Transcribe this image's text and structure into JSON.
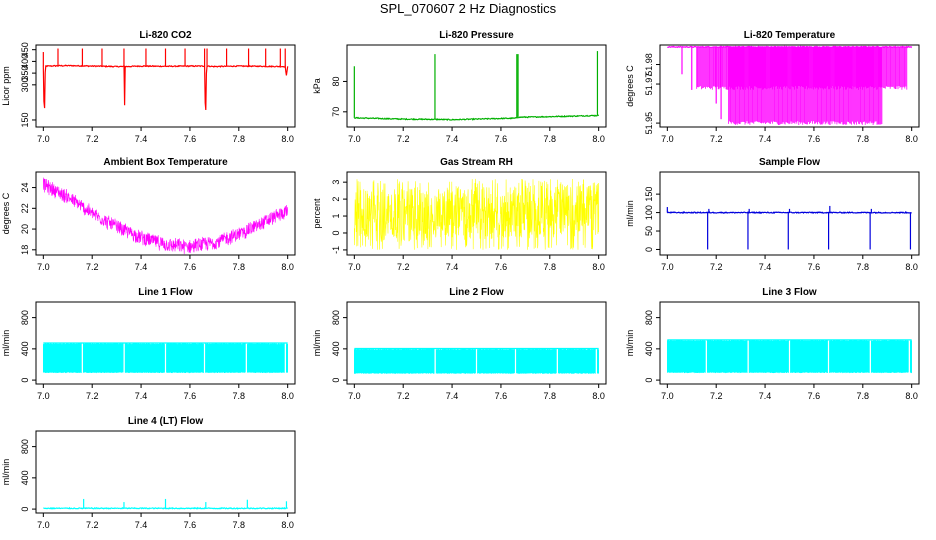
{
  "title": "SPL_070607  2 Hz Diagnostics",
  "chart_data": [
    {
      "id": "co2",
      "type": "line",
      "title": "Li-820 CO2",
      "ylabel": "Licor ppm",
      "color": "#ff0000",
      "xlim": [
        6.97,
        8.03
      ],
      "ylim": [
        120,
        470
      ],
      "xticks": [
        7.0,
        7.2,
        7.4,
        7.6,
        7.8,
        8.0
      ],
      "xtick_labels": [
        "7.0",
        "7.2",
        "7.4",
        "7.6",
        "7.8",
        "8.0"
      ],
      "yticks": [
        150,
        300,
        350,
        400,
        450
      ],
      "ytick_labels": [
        "150",
        "300",
        "350",
        "400",
        "450"
      ],
      "series": [
        {
          "x": [
            7.0,
            7.004,
            7.008,
            7.1,
            7.2,
            7.3,
            7.33,
            7.332,
            7.334,
            7.4,
            7.5,
            7.6,
            7.66,
            7.664,
            7.668,
            7.7,
            7.8,
            7.9,
            7.99,
            7.995,
            8.0
          ],
          "y": [
            380,
            140,
            380,
            382,
            380,
            378,
            378,
            160,
            378,
            380,
            379,
            380,
            380,
            130,
            380,
            378,
            380,
            379,
            378,
            340,
            378
          ],
          "spikes": [
            {
              "x": 7.0,
              "y": 440
            },
            {
              "x": 7.06,
              "y": 455
            },
            {
              "x": 7.16,
              "y": 455
            },
            {
              "x": 7.24,
              "y": 455
            },
            {
              "x": 7.33,
              "y": 455
            },
            {
              "x": 7.42,
              "y": 455
            },
            {
              "x": 7.5,
              "y": 455
            },
            {
              "x": 7.58,
              "y": 455
            },
            {
              "x": 7.66,
              "y": 455
            },
            {
              "x": 7.67,
              "y": 455
            },
            {
              "x": 7.75,
              "y": 455
            },
            {
              "x": 7.84,
              "y": 455
            },
            {
              "x": 7.91,
              "y": 455
            },
            {
              "x": 7.97,
              "y": 455
            },
            {
              "x": 7.99,
              "y": 455
            }
          ]
        }
      ]
    },
    {
      "id": "pressure",
      "type": "line",
      "title": "Li-820 Pressure",
      "ylabel": "kPa",
      "color": "#00b000",
      "xlim": [
        6.97,
        8.03
      ],
      "ylim": [
        65,
        92
      ],
      "xticks": [
        7.0,
        7.2,
        7.4,
        7.6,
        7.8,
        8.0
      ],
      "xtick_labels": [
        "7.0",
        "7.2",
        "7.4",
        "7.6",
        "7.8",
        "8.0"
      ],
      "yticks": [
        70,
        80
      ],
      "ytick_labels": [
        "70",
        "80"
      ],
      "series": [
        {
          "x": [
            7.0,
            7.2,
            7.33,
            7.34,
            7.4,
            7.5,
            7.6,
            7.66,
            7.67,
            7.8,
            7.9,
            8.0
          ],
          "y": [
            68,
            67.6,
            67.5,
            67.5,
            67.4,
            67.6,
            67.8,
            67.9,
            68.2,
            68.4,
            68.6,
            68.8
          ],
          "spikes": [
            {
              "x": 7.0,
              "y": 85
            },
            {
              "x": 7.33,
              "y": 89
            },
            {
              "x": 7.665,
              "y": 89
            },
            {
              "x": 7.67,
              "y": 89
            },
            {
              "x": 7.995,
              "y": 90
            }
          ]
        }
      ]
    },
    {
      "id": "licor_temp",
      "type": "line",
      "title": "Li-820 Temperature",
      "ylabel": "degrees C",
      "color": "#ff00ff",
      "xlim": [
        6.97,
        8.03
      ],
      "ylim": [
        51.948,
        51.99
      ],
      "xticks": [
        7.0,
        7.2,
        7.4,
        7.6,
        7.8,
        8.0
      ],
      "xtick_labels": [
        "7.0",
        "7.2",
        "7.4",
        "7.6",
        "7.8",
        "8.0"
      ],
      "yticks": [
        51.95,
        51.97,
        51.98
      ],
      "ytick_labels": [
        "51.95",
        "51.97",
        "51.98"
      ],
      "series": [
        {
          "x": [
            7.0,
            8.0
          ],
          "y": [
            51.989,
            51.989
          ],
          "spikes": [
            {
              "x": 7.06,
              "y": 51.975
            },
            {
              "x": 7.1,
              "y": 51.967
            },
            {
              "x": 7.2,
              "y": 51.96
            },
            {
              "x": 7.22,
              "y": 51.952
            }
          ],
          "drop_band": {
            "x_from": 7.25,
            "x_to": 7.88,
            "y_bottom": 51.949
          },
          "drop_band_upper": {
            "x_from": 7.12,
            "x_to": 7.98,
            "y_bottom": 51.967
          }
        }
      ]
    },
    {
      "id": "box_temp",
      "type": "line",
      "title": "Ambient Box Temperature",
      "ylabel": "degrees C",
      "color": "#ff00ff",
      "xlim": [
        6.97,
        8.03
      ],
      "ylim": [
        17.5,
        25.5
      ],
      "xticks": [
        7.0,
        7.2,
        7.4,
        7.6,
        7.8,
        8.0
      ],
      "xtick_labels": [
        "7.0",
        "7.2",
        "7.4",
        "7.6",
        "7.8",
        "8.0"
      ],
      "yticks": [
        18,
        20,
        22,
        24
      ],
      "ytick_labels": [
        "18",
        "20",
        "22",
        "24"
      ],
      "series": [
        {
          "x": [
            7.0,
            7.1,
            7.2,
            7.3,
            7.4,
            7.5,
            7.6,
            7.7,
            7.8,
            7.9,
            8.0
          ],
          "y": [
            24.3,
            23.1,
            21.5,
            20.2,
            19.2,
            18.5,
            18.3,
            18.7,
            19.5,
            20.6,
            21.8
          ],
          "noise": 0.8
        }
      ]
    },
    {
      "id": "rh",
      "type": "line",
      "title": "Gas Stream RH",
      "ylabel": "percent",
      "color": "#ffff00",
      "xlim": [
        6.97,
        8.03
      ],
      "ylim": [
        -1.3,
        3.6
      ],
      "xticks": [
        7.0,
        7.2,
        7.4,
        7.6,
        7.8,
        8.0
      ],
      "xtick_labels": [
        "7.0",
        "7.2",
        "7.4",
        "7.6",
        "7.8",
        "8.0"
      ],
      "yticks": [
        -1,
        0,
        1,
        2,
        3
      ],
      "ytick_labels": [
        "-1",
        "0",
        "1",
        "2",
        "3"
      ],
      "series": [
        {
          "x": [
            7.0,
            8.0
          ],
          "y": [
            1.0,
            1.4
          ],
          "noise_low": -1.0,
          "noise_high": 3.2
        }
      ]
    },
    {
      "id": "sample_flow",
      "type": "line",
      "title": "Sample Flow",
      "ylabel": "ml/min",
      "color": "#0000dd",
      "xlim": [
        6.97,
        8.03
      ],
      "ylim": [
        -15,
        210
      ],
      "xticks": [
        7.0,
        7.2,
        7.4,
        7.6,
        7.8,
        8.0
      ],
      "xtick_labels": [
        "7.0",
        "7.2",
        "7.4",
        "7.6",
        "7.8",
        "8.0"
      ],
      "yticks": [
        0,
        50,
        100,
        150
      ],
      "ytick_labels": [
        "0",
        "50",
        "100",
        "150"
      ],
      "series": [
        {
          "x": [
            7.0,
            8.0
          ],
          "y": [
            100,
            100
          ],
          "spikes": [
            {
              "x": 7.0,
              "y": 115
            },
            {
              "x": 7.165,
              "y": 0
            },
            {
              "x": 7.17,
              "y": 110
            },
            {
              "x": 7.33,
              "y": 0
            },
            {
              "x": 7.335,
              "y": 110
            },
            {
              "x": 7.495,
              "y": 0
            },
            {
              "x": 7.5,
              "y": 110
            },
            {
              "x": 7.66,
              "y": 0
            },
            {
              "x": 7.665,
              "y": 118
            },
            {
              "x": 7.83,
              "y": 0
            },
            {
              "x": 7.835,
              "y": 110
            },
            {
              "x": 7.995,
              "y": 0
            }
          ]
        }
      ]
    },
    {
      "id": "line1",
      "type": "line",
      "title": "Line 1 Flow",
      "ylabel": "ml/min",
      "color": "#00ffff",
      "xlim": [
        6.97,
        8.03
      ],
      "ylim": [
        -50,
        1000
      ],
      "xticks": [
        7.0,
        7.2,
        7.4,
        7.6,
        7.8,
        8.0
      ],
      "xtick_labels": [
        "7.0",
        "7.2",
        "7.4",
        "7.6",
        "7.8",
        "8.0"
      ],
      "yticks": [
        0,
        400,
        800
      ],
      "ytick_labels": [
        "0",
        "400",
        "800"
      ],
      "series": [
        {
          "x": [
            7.0,
            8.0
          ],
          "y": [
            460,
            460
          ],
          "band_low": 90,
          "band_high": 480,
          "gaps": [
            7.16,
            7.33,
            7.5,
            7.66,
            7.83,
            7.99
          ]
        }
      ]
    },
    {
      "id": "line2",
      "type": "line",
      "title": "Line 2 Flow",
      "ylabel": "ml/min",
      "color": "#00ffff",
      "xlim": [
        6.97,
        8.03
      ],
      "ylim": [
        -50,
        1000
      ],
      "xticks": [
        7.0,
        7.2,
        7.4,
        7.6,
        7.8,
        8.0
      ],
      "xtick_labels": [
        "7.0",
        "7.2",
        "7.4",
        "7.6",
        "7.8",
        "8.0"
      ],
      "yticks": [
        0,
        400,
        800
      ],
      "ytick_labels": [
        "0",
        "400",
        "800"
      ],
      "series": [
        {
          "x": [
            7.0,
            8.0
          ],
          "y": [
            390,
            390
          ],
          "band_low": 80,
          "band_high": 410,
          "gaps": [
            7.33,
            7.5,
            7.66,
            7.83,
            7.99
          ]
        }
      ]
    },
    {
      "id": "line3",
      "type": "line",
      "title": "Line 3 Flow",
      "ylabel": "ml/min",
      "color": "#00ffff",
      "xlim": [
        6.97,
        8.03
      ],
      "ylim": [
        -50,
        1000
      ],
      "xticks": [
        7.0,
        7.2,
        7.4,
        7.6,
        7.8,
        8.0
      ],
      "xtick_labels": [
        "7.0",
        "7.2",
        "7.4",
        "7.6",
        "7.8",
        "8.0"
      ],
      "yticks": [
        0,
        400,
        800
      ],
      "ytick_labels": [
        "0",
        "400",
        "800"
      ],
      "series": [
        {
          "x": [
            7.0,
            8.0
          ],
          "y": [
            500,
            500
          ],
          "band_low": 90,
          "band_high": 520,
          "gaps": [
            7.16,
            7.33,
            7.5,
            7.66,
            7.83,
            7.99
          ]
        }
      ]
    },
    {
      "id": "line4",
      "type": "line",
      "title": "Line 4 (LT) Flow",
      "ylabel": "ml/min",
      "color": "#00ffff",
      "xlim": [
        6.97,
        8.03
      ],
      "ylim": [
        -50,
        1000
      ],
      "xticks": [
        7.0,
        7.2,
        7.4,
        7.6,
        7.8,
        8.0
      ],
      "xtick_labels": [
        "7.0",
        "7.2",
        "7.4",
        "7.6",
        "7.8",
        "8.0"
      ],
      "yticks": [
        0,
        400,
        800
      ],
      "ytick_labels": [
        "0",
        "400",
        "800"
      ],
      "series": [
        {
          "x": [
            7.0,
            8.0
          ],
          "y": [
            10,
            10
          ],
          "spikes": [
            {
              "x": 7.165,
              "y": 130
            },
            {
              "x": 7.33,
              "y": 90
            },
            {
              "x": 7.5,
              "y": 130
            },
            {
              "x": 7.665,
              "y": 90
            },
            {
              "x": 7.835,
              "y": 120
            },
            {
              "x": 7.995,
              "y": 100
            }
          ]
        }
      ]
    }
  ]
}
